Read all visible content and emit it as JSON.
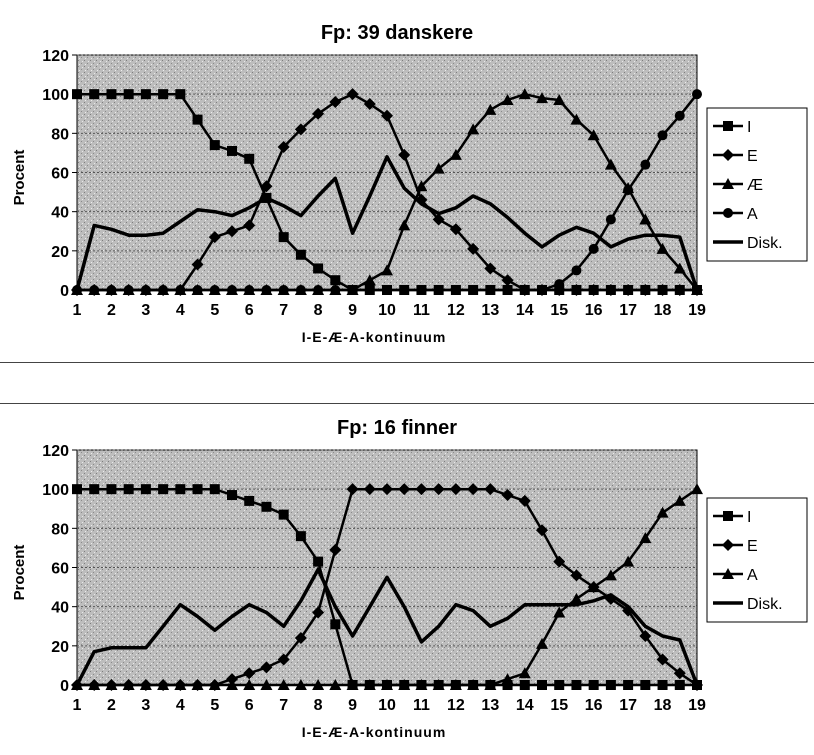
{
  "chart_data": [
    {
      "type": "line",
      "title": "Fp:  39  danskere",
      "xlabel": "I-E-Æ-A-kontinuum",
      "ylabel": "Procent",
      "ylim": [
        0,
        120
      ],
      "yticks": [
        "0",
        "20",
        "40",
        "60",
        "80",
        "100",
        "120"
      ],
      "xticks": [
        "1",
        "2",
        "3",
        "4",
        "5",
        "6",
        "7",
        "8",
        "9",
        "10",
        "11",
        "12",
        "13",
        "14",
        "15",
        "16",
        "17",
        "18",
        "19"
      ],
      "x": [
        1,
        1.5,
        2,
        2.5,
        3,
        3.5,
        4,
        4.5,
        5,
        5.5,
        6,
        6.5,
        7,
        7.5,
        8,
        8.5,
        9,
        9.5,
        10,
        10.5,
        11,
        11.5,
        12,
        12.5,
        13,
        13.5,
        14,
        14.5,
        15,
        15.5,
        16,
        16.5,
        17,
        17.5,
        18,
        18.5,
        19
      ],
      "legend_position": "right",
      "series": [
        {
          "name": "I",
          "marker": "square",
          "values": [
            100,
            100,
            100,
            100,
            100,
            100,
            100,
            87,
            74,
            71,
            67,
            47,
            27,
            18,
            11,
            5,
            0,
            0,
            0,
            0,
            0,
            0,
            0,
            0,
            0,
            0,
            0,
            0,
            0,
            0,
            0,
            0,
            0,
            0,
            0,
            0,
            0
          ]
        },
        {
          "name": "E",
          "marker": "diamond",
          "values": [
            0,
            0,
            0,
            0,
            0,
            0,
            0,
            13,
            27,
            30,
            33,
            53,
            73,
            82,
            90,
            96,
            100,
            95,
            89,
            69,
            46,
            36,
            31,
            21,
            11,
            5,
            0,
            0,
            0,
            0,
            0,
            0,
            0,
            0,
            0,
            0,
            0
          ]
        },
        {
          "name": "Æ",
          "marker": "triangle",
          "values": [
            0,
            0,
            0,
            0,
            0,
            0,
            0,
            0,
            0,
            0,
            0,
            0,
            0,
            0,
            0,
            0,
            0,
            5,
            10,
            33,
            53,
            62,
            69,
            82,
            92,
            97,
            100,
            98,
            97,
            87,
            79,
            64,
            52,
            36,
            21,
            11,
            0
          ]
        },
        {
          "name": "A",
          "marker": "circle",
          "values": [
            0,
            0,
            0,
            0,
            0,
            0,
            0,
            0,
            0,
            0,
            0,
            0,
            0,
            0,
            0,
            0,
            0,
            0,
            0,
            0,
            0,
            0,
            0,
            0,
            0,
            0,
            0,
            0,
            3,
            10,
            21,
            36,
            51,
            64,
            79,
            89,
            100
          ]
        },
        {
          "name": "Disk.",
          "marker": "none",
          "values": [
            0,
            33,
            31,
            28,
            28,
            29,
            35,
            41,
            40,
            38,
            42,
            47,
            43,
            38,
            48,
            57,
            29,
            48,
            68,
            52,
            44,
            39,
            42,
            48,
            44,
            37,
            29,
            22,
            28,
            32,
            29,
            22,
            26,
            28,
            28,
            27,
            0
          ]
        }
      ]
    },
    {
      "type": "line",
      "title": "Fp:  16  finner",
      "xlabel": "I-E-Æ-A-kontinuum",
      "ylabel": "Procent",
      "ylim": [
        0,
        120
      ],
      "yticks": [
        "0",
        "20",
        "40",
        "60",
        "80",
        "100",
        "120"
      ],
      "xticks": [
        "1",
        "2",
        "3",
        "4",
        "5",
        "6",
        "7",
        "8",
        "9",
        "10",
        "11",
        "12",
        "13",
        "14",
        "15",
        "16",
        "17",
        "18",
        "19"
      ],
      "x": [
        1,
        1.5,
        2,
        2.5,
        3,
        3.5,
        4,
        4.5,
        5,
        5.5,
        6,
        6.5,
        7,
        7.5,
        8,
        8.5,
        9,
        9.5,
        10,
        10.5,
        11,
        11.5,
        12,
        12.5,
        13,
        13.5,
        14,
        14.5,
        15,
        15.5,
        16,
        16.5,
        17,
        17.5,
        18,
        18.5,
        19
      ],
      "legend_position": "right",
      "series": [
        {
          "name": "I",
          "marker": "square",
          "values": [
            100,
            100,
            100,
            100,
            100,
            100,
            100,
            100,
            100,
            97,
            94,
            91,
            87,
            76,
            63,
            31,
            0,
            0,
            0,
            0,
            0,
            0,
            0,
            0,
            0,
            0,
            0,
            0,
            0,
            0,
            0,
            0,
            0,
            0,
            0,
            0,
            0
          ]
        },
        {
          "name": "E",
          "marker": "diamond",
          "values": [
            0,
            0,
            0,
            0,
            0,
            0,
            0,
            0,
            0,
            3,
            6,
            9,
            13,
            24,
            37,
            69,
            100,
            100,
            100,
            100,
            100,
            100,
            100,
            100,
            100,
            97,
            94,
            79,
            63,
            56,
            50,
            44,
            38,
            25,
            13,
            6,
            0
          ]
        },
        {
          "name": "A",
          "marker": "triangle",
          "values": [
            0,
            0,
            0,
            0,
            0,
            0,
            0,
            0,
            0,
            0,
            0,
            0,
            0,
            0,
            0,
            0,
            0,
            0,
            0,
            0,
            0,
            0,
            0,
            0,
            0,
            3,
            6,
            21,
            37,
            44,
            50,
            56,
            63,
            75,
            88,
            94,
            100
          ]
        },
        {
          "name": "Disk.",
          "marker": "none",
          "values": [
            0,
            17,
            19,
            19,
            19,
            30,
            41,
            35,
            28,
            35,
            41,
            37,
            30,
            43,
            59,
            40,
            25,
            40,
            55,
            40,
            22,
            30,
            41,
            38,
            30,
            34,
            41,
            41,
            41,
            41,
            43,
            46,
            40,
            30,
            25,
            23,
            0
          ]
        }
      ]
    }
  ]
}
